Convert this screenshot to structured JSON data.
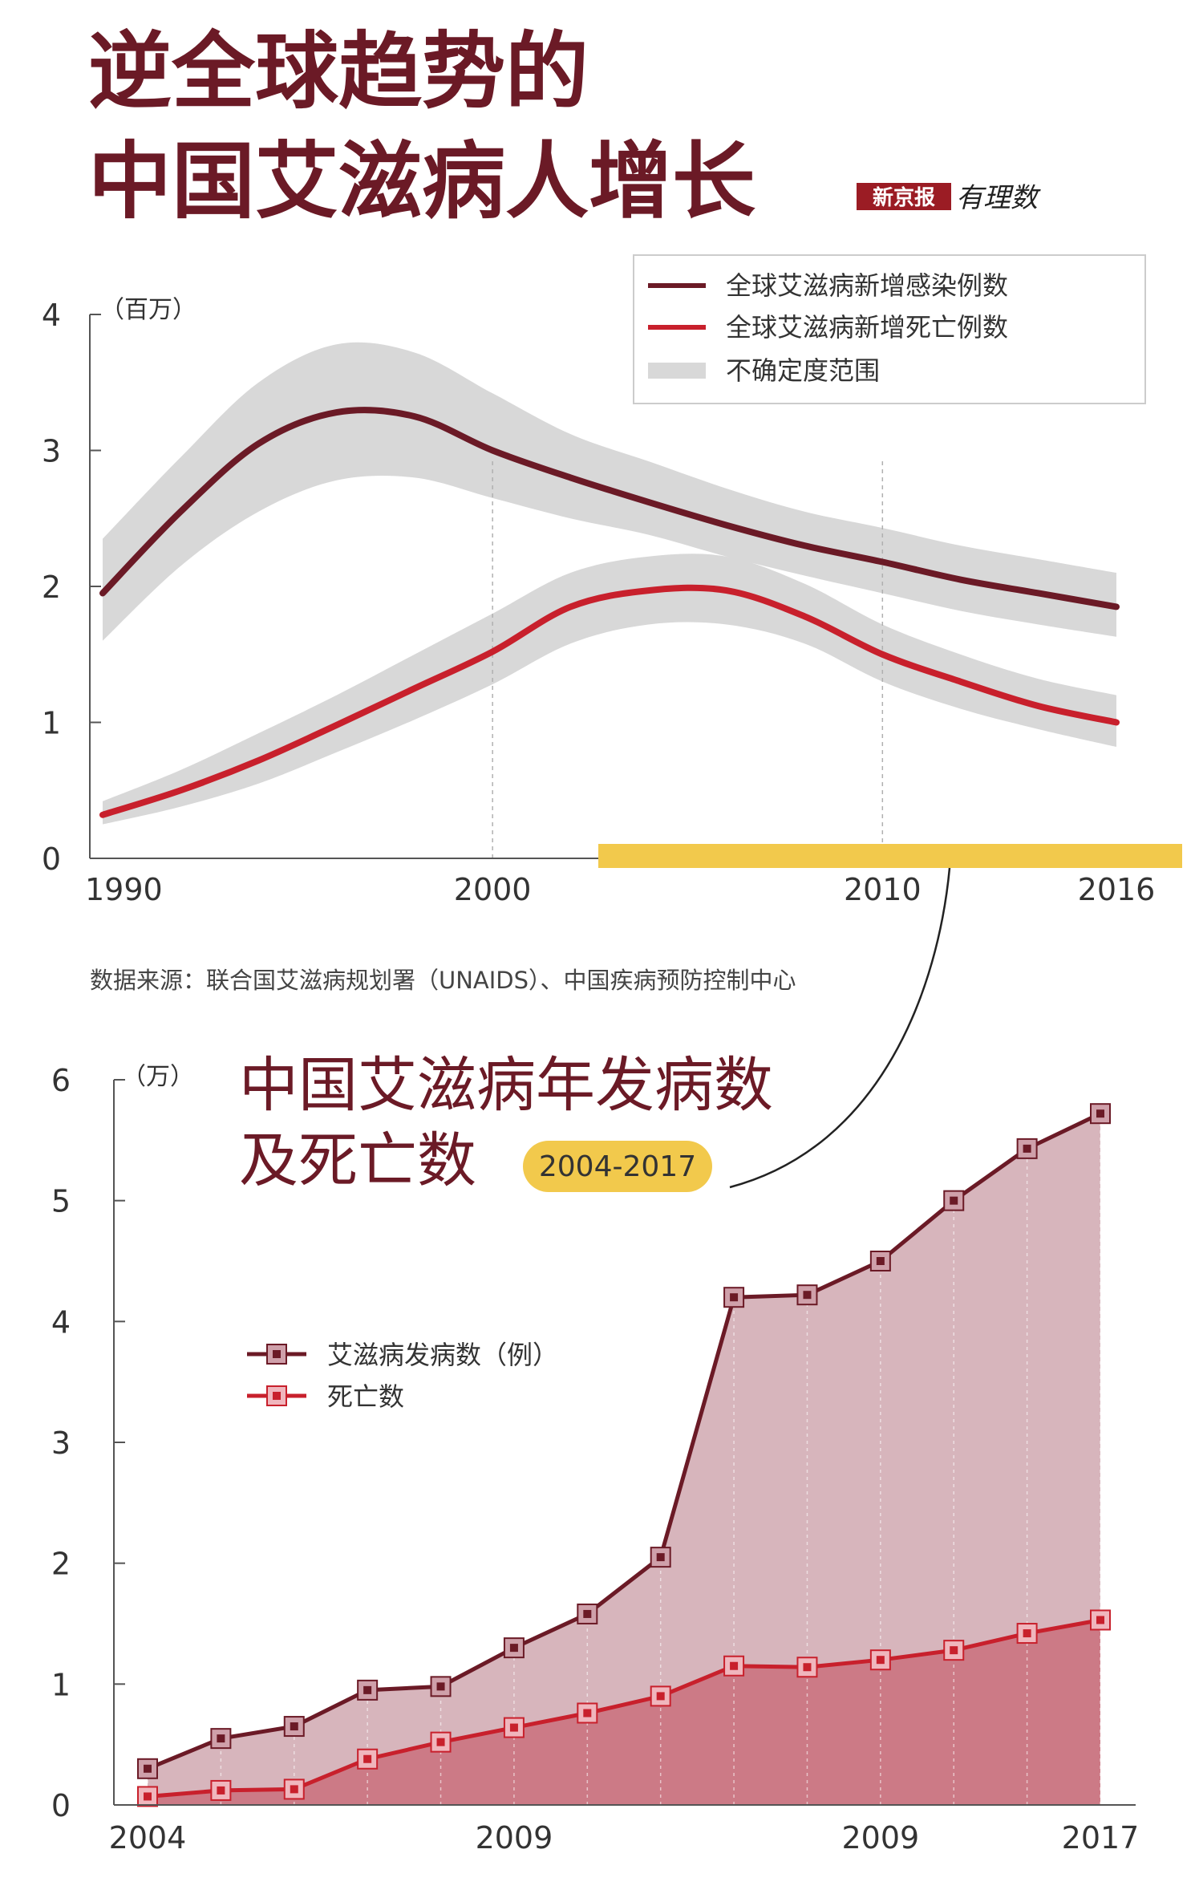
{
  "header": {
    "title_line1": "逆全球趋势的",
    "title_line2": "中国艾滋病人增长",
    "brand_name": "新京报",
    "brand_logo": "有理数"
  },
  "colors": {
    "title": "#6b1a26",
    "infections": "#6b1a26",
    "deaths": "#c8202c",
    "band": "#d8d8d8",
    "incidence_fill": "#d7b5bc",
    "death_fill": "#cc7a86",
    "yellow": "#f2c94c",
    "axis": "#555555"
  },
  "chart_data": [
    {
      "type": "line",
      "unit_label": "（百万）",
      "x_ticks": [
        "1990",
        "2000",
        "2010",
        "2016"
      ],
      "ylim": [
        0,
        4
      ],
      "y_ticks": [
        "0",
        "1",
        "2",
        "3",
        "4"
      ],
      "xlim": [
        1990,
        2016
      ],
      "legend_position": "top-right",
      "series": [
        {
          "name": "全球艾滋病新增感染例数",
          "x": [
            1990,
            1992,
            1994,
            1996,
            1998,
            2000,
            2002,
            2004,
            2006,
            2008,
            2010,
            2012,
            2014,
            2016
          ],
          "values": [
            1.95,
            2.55,
            3.05,
            3.28,
            3.25,
            3.0,
            2.8,
            2.62,
            2.45,
            2.3,
            2.18,
            2.05,
            1.95,
            1.85
          ]
        },
        {
          "name": "全球艾滋病新增死亡例数",
          "x": [
            1990,
            1992,
            1994,
            1996,
            1998,
            2000,
            2002,
            2004,
            2006,
            2008,
            2010,
            2012,
            2014,
            2016
          ],
          "values": [
            0.32,
            0.5,
            0.72,
            0.98,
            1.25,
            1.52,
            1.85,
            1.97,
            1.97,
            1.78,
            1.5,
            1.3,
            1.12,
            1.0
          ]
        }
      ],
      "band": {
        "name": "不确定度范围",
        "x": [
          1990,
          1992,
          1994,
          1996,
          1998,
          2000,
          2002,
          2004,
          2006,
          2008,
          2010,
          2012,
          2014,
          2016
        ],
        "infections_low": [
          1.6,
          2.15,
          2.55,
          2.78,
          2.8,
          2.65,
          2.5,
          2.38,
          2.22,
          2.08,
          1.95,
          1.82,
          1.72,
          1.63
        ],
        "infections_high": [
          2.35,
          2.95,
          3.5,
          3.78,
          3.72,
          3.42,
          3.12,
          2.92,
          2.72,
          2.55,
          2.43,
          2.3,
          2.2,
          2.1
        ],
        "deaths_low": [
          0.25,
          0.38,
          0.55,
          0.78,
          1.02,
          1.28,
          1.58,
          1.72,
          1.72,
          1.58,
          1.3,
          1.1,
          0.95,
          0.82
        ],
        "deaths_high": [
          0.42,
          0.65,
          0.92,
          1.2,
          1.5,
          1.8,
          2.1,
          2.22,
          2.22,
          2.02,
          1.72,
          1.5,
          1.32,
          1.2
        ]
      },
      "source": "数据来源：联合国艾滋病规划署（UNAIDS）、中国疾病预防控制中心"
    },
    {
      "type": "area",
      "title_line1": "中国艾滋病年发病数",
      "title_line2": "及死亡数",
      "period_badge": "2004-2017",
      "unit_label": "（万）",
      "categories": [
        "2004",
        "2005",
        "2006",
        "2007",
        "2008",
        "2009",
        "2010",
        "2011",
        "2012",
        "2013",
        "2014",
        "2015",
        "2016",
        "2017"
      ],
      "x_tick_labels": [
        "2004",
        "2009",
        "2009",
        "2017"
      ],
      "ylim": [
        0,
        6
      ],
      "y_ticks": [
        "0",
        "1",
        "2",
        "3",
        "4",
        "5",
        "6"
      ],
      "legend_position": "middle-left",
      "series": [
        {
          "name": "艾滋病发病数（例）",
          "values": [
            0.3,
            0.55,
            0.65,
            0.95,
            0.98,
            1.3,
            1.58,
            2.05,
            4.2,
            4.22,
            4.5,
            5.0,
            5.43,
            5.72
          ]
        },
        {
          "name": "死亡数",
          "values": [
            0.07,
            0.12,
            0.13,
            0.38,
            0.52,
            0.64,
            0.76,
            0.9,
            1.15,
            1.14,
            1.2,
            1.28,
            1.42,
            1.53
          ]
        }
      ]
    }
  ]
}
